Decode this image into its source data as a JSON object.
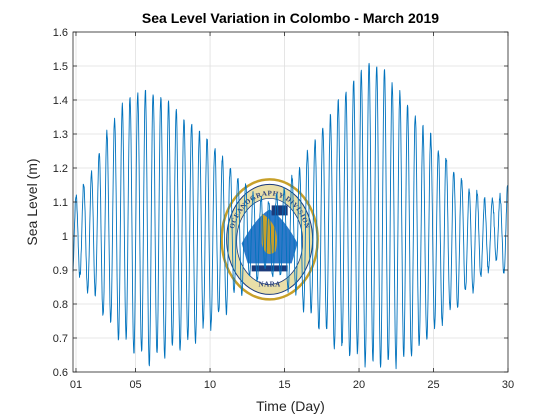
{
  "chart_data": {
    "type": "line",
    "title": "Sea Level Variation in Colombo - March 2019",
    "xlabel": "Time (Day)",
    "ylabel": "Sea Level (m)",
    "xlim": [
      0.8,
      30
    ],
    "ylim": [
      0.6,
      1.6
    ],
    "xticks": [
      1,
      5,
      10,
      15,
      20,
      25,
      30
    ],
    "xtick_labels": [
      "01",
      "05",
      "10",
      "15",
      "20",
      "25",
      "30"
    ],
    "yticks": [
      0.6,
      0.7,
      0.8,
      0.9,
      1.0,
      1.1,
      1.2,
      1.3,
      1.4,
      1.5,
      1.6
    ],
    "ytick_labels": [
      "0.6",
      "0.7",
      "0.8",
      "0.9",
      "1",
      "1.1",
      "1.2",
      "1.3",
      "1.4",
      "1.5",
      "1.6"
    ],
    "grid": true,
    "series": [
      {
        "color": "#0072BD",
        "description": "Semi-diurnal tide, two cycles per day; spring tides near days 6 and 21 (range about 0.63-1.52 m), neap tides near days 1, 14 and 29 (range about 0.95-1.10 m).",
        "daily_envelope": [
          {
            "day": 1,
            "max": 1.12,
            "min": 0.88
          },
          {
            "day": 2,
            "max": 1.18,
            "min": 0.84
          },
          {
            "day": 3,
            "max": 1.3,
            "min": 0.76
          },
          {
            "day": 4,
            "max": 1.38,
            "min": 0.7
          },
          {
            "day": 5,
            "max": 1.42,
            "min": 0.66
          },
          {
            "day": 6,
            "max": 1.43,
            "min": 0.63
          },
          {
            "day": 7,
            "max": 1.4,
            "min": 0.65
          },
          {
            "day": 8,
            "max": 1.36,
            "min": 0.68
          },
          {
            "day": 9,
            "max": 1.32,
            "min": 0.7
          },
          {
            "day": 10,
            "max": 1.28,
            "min": 0.74
          },
          {
            "day": 11,
            "max": 1.22,
            "min": 0.78
          },
          {
            "day": 12,
            "max": 1.17,
            "min": 0.84
          },
          {
            "day": 13,
            "max": 1.12,
            "min": 0.88
          },
          {
            "day": 14,
            "max": 1.1,
            "min": 0.9
          },
          {
            "day": 15,
            "max": 1.14,
            "min": 0.86
          },
          {
            "day": 16,
            "max": 1.2,
            "min": 0.81
          },
          {
            "day": 17,
            "max": 1.28,
            "min": 0.75
          },
          {
            "day": 18,
            "max": 1.35,
            "min": 0.7
          },
          {
            "day": 19,
            "max": 1.42,
            "min": 0.66
          },
          {
            "day": 20,
            "max": 1.48,
            "min": 0.64
          },
          {
            "day": 21,
            "max": 1.52,
            "min": 0.62
          },
          {
            "day": 22,
            "max": 1.47,
            "min": 0.62
          },
          {
            "day": 23,
            "max": 1.4,
            "min": 0.64
          },
          {
            "day": 24,
            "max": 1.34,
            "min": 0.67
          },
          {
            "day": 25,
            "max": 1.28,
            "min": 0.72
          },
          {
            "day": 26,
            "max": 1.22,
            "min": 0.77
          },
          {
            "day": 27,
            "max": 1.16,
            "min": 0.82
          },
          {
            "day": 28,
            "max": 1.12,
            "min": 0.86
          },
          {
            "day": 29,
            "max": 1.1,
            "min": 0.93
          },
          {
            "day": 30,
            "max": 1.15,
            "min": 0.89
          }
        ]
      }
    ]
  },
  "watermark": {
    "ring_text": "OCEANOGRAPHY DIVISION",
    "bottom_text": "NARA",
    "colors": {
      "gold": "#c8a02a",
      "navy": "#1c3a7a",
      "ring": "#e9dfa8",
      "blue": "#2f79c9"
    }
  }
}
